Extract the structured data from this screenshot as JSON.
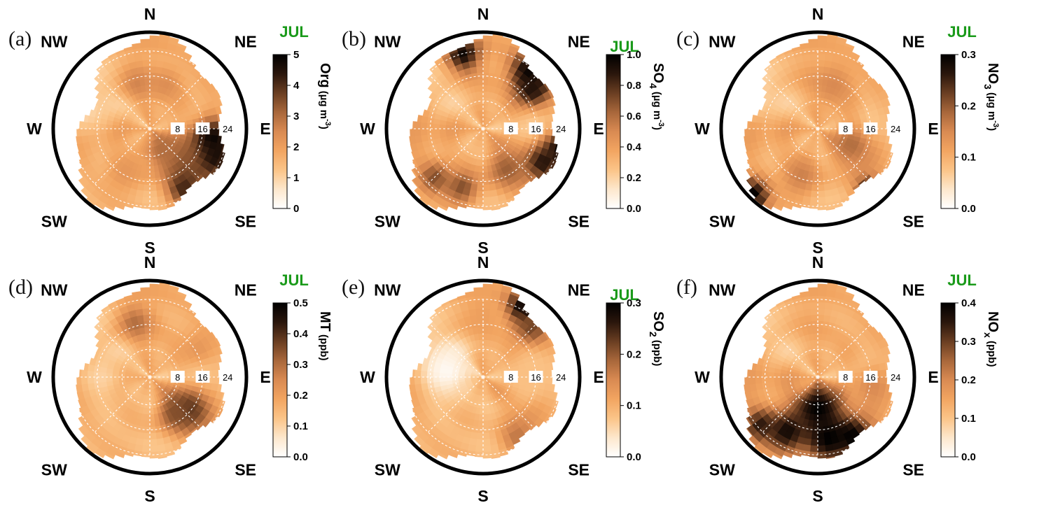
{
  "month_color": "#1a9a1a",
  "direction_labels": [
    "N",
    "NE",
    "E",
    "SE",
    "S",
    "SW",
    "W",
    "NW"
  ],
  "ring_labels": [
    "8",
    "16",
    "24"
  ],
  "colormap": [
    "#ffffff",
    "#fde7cc",
    "#fbc488",
    "#f2a561",
    "#d98a52",
    "#a8673b",
    "#6a3e22",
    "#2a160c",
    "#000000"
  ],
  "chart_data": [
    {
      "type": "heatmap",
      "panel": "(a)",
      "month": "JUL",
      "species": "Org",
      "subscript": "",
      "unit": "(µg m",
      "unit_sup": "-3",
      "unit_close": ")",
      "clim": [
        0,
        5
      ],
      "ticks": [
        "0",
        "1",
        "2",
        "3",
        "4",
        "5"
      ],
      "radial_max": 24,
      "spots": [
        {
          "dir": 100,
          "ws": 20,
          "value": 5.0,
          "spread": 5
        },
        {
          "dir": 115,
          "ws": 22,
          "value": 4.8,
          "spread": 5
        },
        {
          "dir": 135,
          "ws": 15,
          "value": 3.5,
          "spread": 6
        },
        {
          "dir": 150,
          "ws": 22,
          "value": 4.2,
          "spread": 4
        },
        {
          "dir": 150,
          "ws": 8,
          "value": 3.0,
          "spread": 5
        },
        {
          "dir": 345,
          "ws": 15,
          "value": 2.6,
          "spread": 4
        },
        {
          "dir": 20,
          "ws": 15,
          "value": 2.4,
          "spread": 4
        },
        {
          "dir": 210,
          "ws": 16,
          "value": 2.2,
          "spread": 5
        },
        {
          "dir": 285,
          "ws": 22,
          "value": 0.9,
          "spread": 6
        }
      ]
    },
    {
      "type": "heatmap",
      "panel": "(b)",
      "month": "JUL",
      "species": "SO",
      "subscript": "4",
      "unit": "(µg m",
      "unit_sup": "-3",
      "unit_close": ")",
      "clim": [
        0.0,
        1.0
      ],
      "ticks": [
        "0.0",
        "0.2",
        "0.4",
        "0.6",
        "0.8",
        "1.0"
      ],
      "radial_max": 24,
      "spots": [
        {
          "dir": 40,
          "ws": 24,
          "value": 1.0,
          "spread": 5
        },
        {
          "dir": 52,
          "ws": 20,
          "value": 0.9,
          "spread": 4
        },
        {
          "dir": 105,
          "ws": 26,
          "value": 1.0,
          "spread": 4
        },
        {
          "dir": 120,
          "ws": 22,
          "value": 0.9,
          "spread": 4
        },
        {
          "dir": 345,
          "ws": 25,
          "value": 0.95,
          "spread": 4
        },
        {
          "dir": 150,
          "ws": 15,
          "value": 0.65,
          "spread": 5
        },
        {
          "dir": 200,
          "ws": 20,
          "value": 0.7,
          "spread": 4
        },
        {
          "dir": 225,
          "ws": 22,
          "value": 0.7,
          "spread": 4
        }
      ]
    },
    {
      "type": "heatmap",
      "panel": "(c)",
      "month": "JUL",
      "species": "NO",
      "subscript": "3",
      "unit": "(µg m",
      "unit_sup": "-3",
      "unit_close": ")",
      "clim": [
        0.0,
        0.3
      ],
      "ticks": [
        "0.0",
        "0.1",
        "0.2",
        "0.3"
      ],
      "radial_max": 24,
      "spots": [
        {
          "dir": 225,
          "ws": 30,
          "value": 0.3,
          "spread": 4
        },
        {
          "dir": 140,
          "ws": 26,
          "value": 0.3,
          "spread": 3
        },
        {
          "dir": 115,
          "ws": 12,
          "value": 0.18,
          "spread": 5
        },
        {
          "dir": 200,
          "ws": 16,
          "value": 0.16,
          "spread": 5
        },
        {
          "dir": 20,
          "ws": 15,
          "value": 0.15,
          "spread": 5
        },
        {
          "dir": 295,
          "ws": 24,
          "value": 0.05,
          "spread": 5
        }
      ]
    },
    {
      "type": "heatmap",
      "panel": "(d)",
      "month": "JUL",
      "species": "MT",
      "subscript": "",
      "unit": "(ppb)",
      "unit_sup": "",
      "unit_close": "",
      "clim": [
        0.0,
        0.5
      ],
      "ticks": [
        "0.0",
        "0.1",
        "0.2",
        "0.3",
        "0.4",
        "0.5"
      ],
      "radial_max": 24,
      "spots": [
        {
          "dir": 130,
          "ws": 16,
          "value": 0.4,
          "spread": 5
        },
        {
          "dir": 145,
          "ws": 14,
          "value": 0.35,
          "spread": 4
        },
        {
          "dir": 345,
          "ws": 18,
          "value": 0.3,
          "spread": 4
        },
        {
          "dir": 60,
          "ws": 18,
          "value": 0.22,
          "spread": 4
        },
        {
          "dir": 270,
          "ws": 16,
          "value": 0.1,
          "spread": 6
        }
      ]
    },
    {
      "type": "heatmap",
      "panel": "(e)",
      "month": "JUL",
      "species": "SO",
      "subscript": "2",
      "unit": "(ppb)",
      "unit_sup": "",
      "unit_close": "",
      "clim": [
        0.0,
        0.3
      ],
      "ticks": [
        "0.0",
        "0.1",
        "0.2",
        "0.3"
      ],
      "radial_max": 24,
      "spots": [
        {
          "dir": 30,
          "ws": 26,
          "value": 0.3,
          "spread": 4
        },
        {
          "dir": 45,
          "ws": 22,
          "value": 0.22,
          "spread": 4
        },
        {
          "dir": 150,
          "ws": 22,
          "value": 0.17,
          "spread": 4
        },
        {
          "dir": 0,
          "ws": 20,
          "value": 0.12,
          "spread": 4
        },
        {
          "dir": 90,
          "ws": 15,
          "value": 0.08,
          "spread": 6
        },
        {
          "dir": 280,
          "ws": 12,
          "value": 0.01,
          "spread": 7
        }
      ]
    },
    {
      "type": "heatmap",
      "panel": "(f)",
      "month": "JUL",
      "species": "NO",
      "subscript": "x",
      "unit": "(ppb)",
      "unit_sup": "",
      "unit_close": "",
      "clim": [
        0.0,
        0.4
      ],
      "ticks": [
        "0.0",
        "0.1",
        "0.2",
        "0.3",
        "0.4"
      ],
      "radial_max": 24,
      "spots": [
        {
          "dir": 180,
          "ws": 10,
          "value": 0.4,
          "spread": 6
        },
        {
          "dir": 170,
          "ws": 20,
          "value": 0.4,
          "spread": 6
        },
        {
          "dir": 210,
          "ws": 20,
          "value": 0.38,
          "spread": 5
        },
        {
          "dir": 150,
          "ws": 22,
          "value": 0.4,
          "spread": 4
        },
        {
          "dir": 230,
          "ws": 24,
          "value": 0.35,
          "spread": 4
        },
        {
          "dir": 140,
          "ws": 28,
          "value": 0.4,
          "spread": 3
        },
        {
          "dir": 100,
          "ws": 18,
          "value": 0.2,
          "spread": 5
        }
      ]
    }
  ]
}
